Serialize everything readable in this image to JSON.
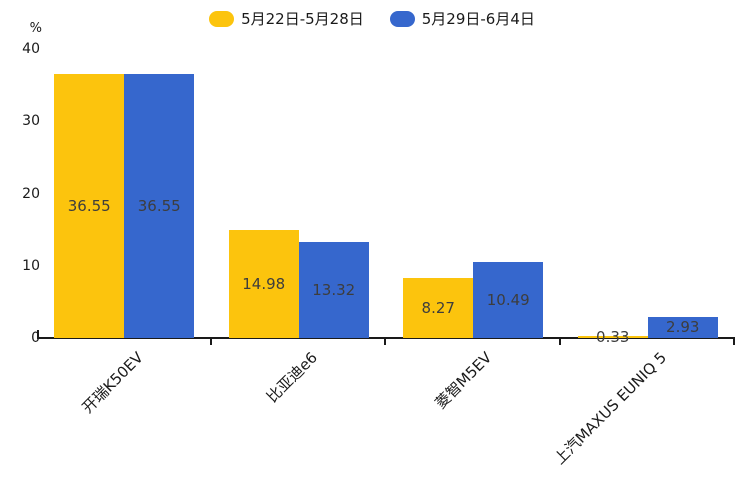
{
  "chart_data": {
    "type": "bar",
    "title": "",
    "xlabel": "",
    "ylabel": "%",
    "ylim": [
      0,
      40
    ],
    "yticks": [
      0,
      10,
      20,
      30,
      40
    ],
    "grid": false,
    "legend_position": "top",
    "categories": [
      "开瑞K50EV",
      "比亚迪e6",
      "菱智M5EV",
      "上汽MAXUS EUNIQ 5"
    ],
    "series": [
      {
        "name": "5月22日-5月28日",
        "color": "#FCC40D",
        "values": [
          36.55,
          14.98,
          8.27,
          0.33
        ]
      },
      {
        "name": "5月29日-6月4日",
        "color": "#3667CD",
        "values": [
          36.55,
          13.32,
          10.49,
          2.93
        ]
      }
    ],
    "value_label_color": "#3d3d3d",
    "axis_color": "#1a1a1a"
  }
}
